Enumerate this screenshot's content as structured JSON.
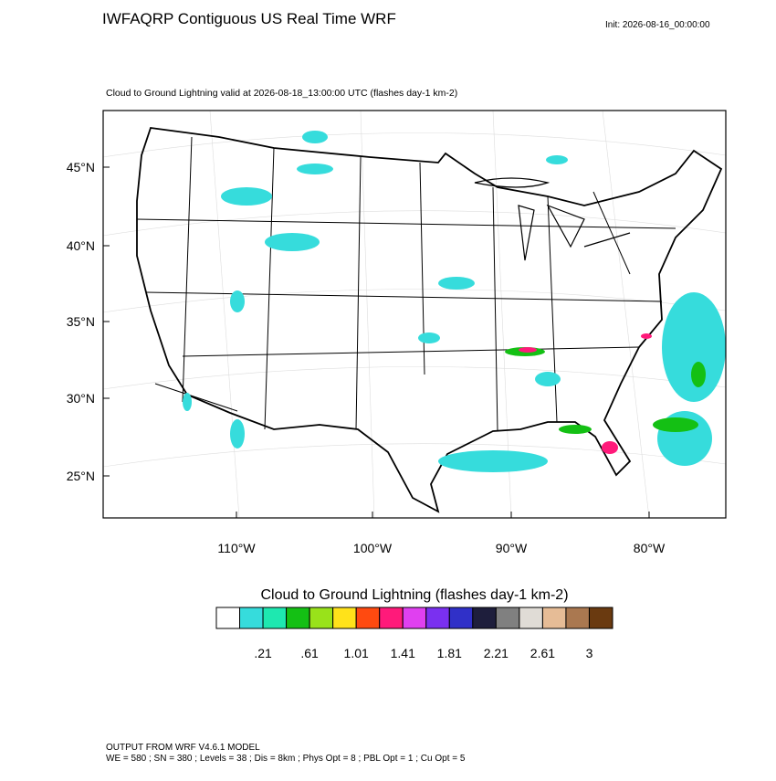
{
  "header": {
    "title": "IWFAQRP Contiguous US Real Time WRF",
    "init": "Init: 2026-08-16_00:00:00"
  },
  "map": {
    "subtitle": "Cloud to Ground Lightning valid at 2026-08-18_13:00:00 UTC   (flashes day-1 km-2)",
    "lat_labels": [
      "45°N",
      "40°N",
      "35°N",
      "30°N",
      "25°N"
    ],
    "lon_labels": [
      "110°W",
      "100°W",
      "90°W",
      "80°W"
    ]
  },
  "colorbar": {
    "title": "Cloud to Ground Lightning  (flashes day-1 km-2)",
    "colors": [
      "#ffffff",
      "#36dcdc",
      "#1ee8b0",
      "#14c014",
      "#99e21a",
      "#ffe21a",
      "#ff4a10",
      "#ff1a7a",
      "#e040f0",
      "#7a30f0",
      "#3030c8",
      "#1e1e3c",
      "#808080",
      "#e0dcd6",
      "#e6bc96",
      "#aa7850",
      "#6a3a10"
    ],
    "labels": [
      ".21",
      ".61",
      "1.01",
      "1.41",
      "1.81",
      "2.21",
      "2.61",
      "3"
    ]
  },
  "footer": {
    "line1": "OUTPUT FROM WRF V4.6.1 MODEL",
    "line2": "WE = 580 ; SN = 380 ; Levels = 38 ; Dis = 8km ; Phys Opt = 8 ; PBL Opt = 1 ; Cu Opt = 5"
  }
}
